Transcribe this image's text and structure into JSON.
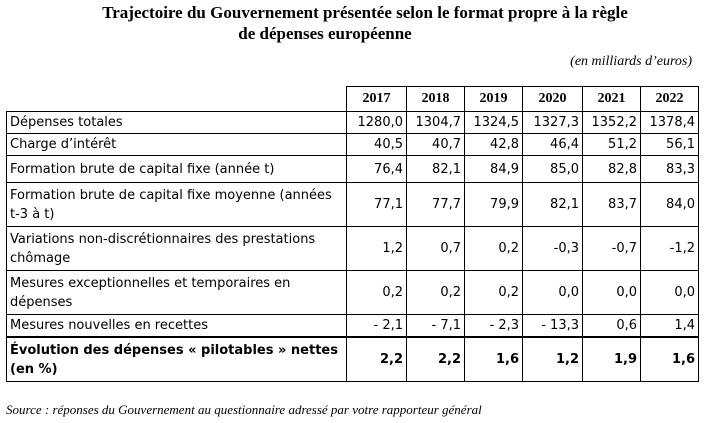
{
  "document": {
    "title_line1": "Trajectoire du Gouvernement présentée selon le format propre à la règle",
    "title_line2": "de dépenses européenne",
    "unit_note": "(en milliards d’euros)",
    "source": "Source : réponses du Gouvernement au questionnaire adressé par votre rapporteur général"
  },
  "table": {
    "years": [
      "2017",
      "2018",
      "2019",
      "2020",
      "2021",
      "2022"
    ],
    "rows": [
      {
        "label": "Dépenses totales",
        "values": [
          "1280,0",
          "1304,7",
          "1324,5",
          "1327,3",
          "1352,2",
          "1378,4"
        ]
      },
      {
        "label": "Charge d’intérêt",
        "values": [
          "40,5",
          "40,7",
          "42,8",
          "46,4",
          "51,2",
          "56,1"
        ]
      },
      {
        "label": "Formation brute de capital fixe (année t)",
        "values": [
          "76,4",
          "82,1",
          "84,9",
          "85,0",
          "82,8",
          "83,3"
        ]
      },
      {
        "label": "Formation brute de capital fixe moyenne (années t-3 à t)",
        "values": [
          "77,1",
          "77,7",
          "79,9",
          "82,1",
          "83,7",
          "84,0"
        ]
      },
      {
        "label": "Variations non-discrétionnaires des prestations chômage",
        "values": [
          "1,2",
          "0,7",
          "0,2",
          "-0,3",
          "-0,7",
          "-1,2"
        ]
      },
      {
        "label": "Mesures exceptionnelles et temporaires en dépenses",
        "values": [
          "0,2",
          "0,2",
          "0,2",
          "0,0",
          "0,0",
          "0,0"
        ]
      },
      {
        "label": "Mesures nouvelles en recettes",
        "values": [
          "- 2,1",
          "- 7,1",
          "- 2,3",
          "- 13,3",
          "0,6",
          "1,4"
        ]
      },
      {
        "label": "Évolution des dépenses « pilotables » nettes (en %)",
        "values": [
          "2,2",
          "2,2",
          "1,6",
          "1,2",
          "1,9",
          "1,6"
        ]
      }
    ]
  }
}
